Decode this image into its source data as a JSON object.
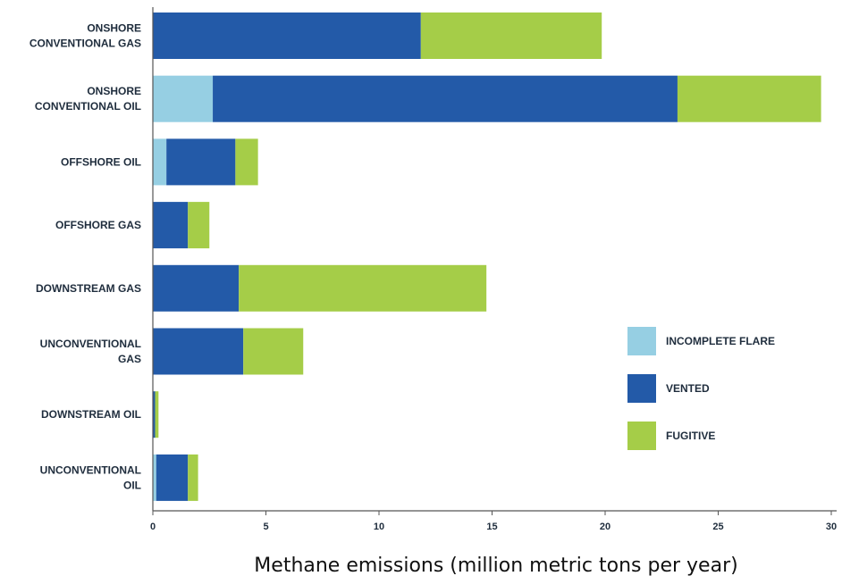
{
  "chart_data": {
    "type": "bar",
    "orientation": "horizontal",
    "stacked": true,
    "title": "",
    "xlabel": "Methane emissions (million metric tons per year)",
    "ylabel": "",
    "xlim": [
      0,
      30
    ],
    "xticks": [
      0,
      5,
      10,
      15,
      20,
      25,
      30
    ],
    "grid": false,
    "legend_position": "right",
    "categories": [
      [
        "ONSHORE",
        "CONVENTIONAL GAS"
      ],
      [
        "ONSHORE",
        "CONVENTIONAL OIL"
      ],
      [
        "OFFSHORE OIL"
      ],
      [
        "OFFSHORE GAS"
      ],
      [
        "DOWNSTREAM GAS"
      ],
      [
        "UNCONVENTIONAL",
        "GAS"
      ],
      [
        "DOWNSTREAM OIL"
      ],
      [
        "UNCONVENTIONAL",
        "OIL"
      ]
    ],
    "series": [
      {
        "name": "INCOMPLETE FLARE",
        "color": "#96cfe3",
        "values": [
          0,
          2.65,
          0.6,
          0,
          0,
          0,
          0,
          0.15
        ]
      },
      {
        "name": "VENTED",
        "color": "#235aa8",
        "values": [
          11.85,
          20.55,
          3.05,
          1.55,
          3.8,
          4.0,
          0.1,
          1.4
        ]
      },
      {
        "name": "FUGITIVE",
        "color": "#a5cd48",
        "values": [
          8.0,
          6.35,
          1.0,
          0.95,
          10.95,
          2.65,
          0.15,
          0.45
        ]
      }
    ]
  }
}
